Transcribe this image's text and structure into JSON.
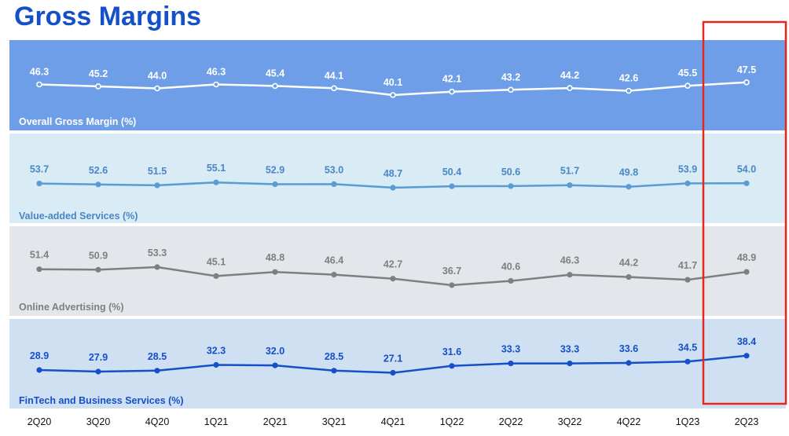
{
  "page": {
    "title": "Gross Margins"
  },
  "chart_data": {
    "type": "line",
    "categories": [
      "2Q20",
      "3Q20",
      "4Q20",
      "1Q21",
      "2Q21",
      "3Q21",
      "4Q21",
      "1Q22",
      "2Q22",
      "3Q22",
      "4Q22",
      "1Q23",
      "2Q23"
    ],
    "series": [
      {
        "name": "Overall Gross Margin (%)",
        "values": [
          46.3,
          45.2,
          44.0,
          46.3,
          45.4,
          44.1,
          40.1,
          42.1,
          43.2,
          44.2,
          42.6,
          45.5,
          47.5
        ],
        "panel_color": "#6f9ee8",
        "line_color": "#ffffff",
        "label_color": "#ffffff",
        "title_color": "#ffffff",
        "ylim": [
          36,
          52
        ]
      },
      {
        "name": "Value-added Services (%)",
        "values": [
          53.7,
          52.6,
          51.5,
          55.1,
          52.9,
          53.0,
          48.7,
          50.4,
          50.6,
          51.7,
          49.8,
          53.9,
          54.0
        ],
        "panel_color": "#d9ebf4",
        "line_color": "#5b9bd5",
        "label_color": "#4a86c5",
        "title_color": "#4a86c5",
        "ylim": [
          38,
          62
        ]
      },
      {
        "name": "Online Advertising (%)",
        "values": [
          51.4,
          50.9,
          53.3,
          45.1,
          48.8,
          46.4,
          42.7,
          36.7,
          40.6,
          46.3,
          44.2,
          41.7,
          48.9
        ],
        "panel_color": "#e3e6ea",
        "line_color": "#7f7f7f",
        "label_color": "#7f7f7f",
        "title_color": "#7f7f7f",
        "ylim": [
          28,
          62
        ]
      },
      {
        "name": "FinTech and Business Services (%)",
        "values": [
          28.9,
          27.9,
          28.5,
          32.3,
          32.0,
          28.5,
          27.1,
          31.6,
          33.3,
          33.3,
          33.6,
          34.5,
          38.4
        ],
        "panel_color": "#cfe0f3",
        "line_color": "#1550c8",
        "label_color": "#1550c8",
        "title_color": "#1550c8",
        "ylim": [
          18,
          44
        ]
      }
    ],
    "highlight": {
      "category": "2Q23",
      "color": "#e8261c"
    }
  }
}
